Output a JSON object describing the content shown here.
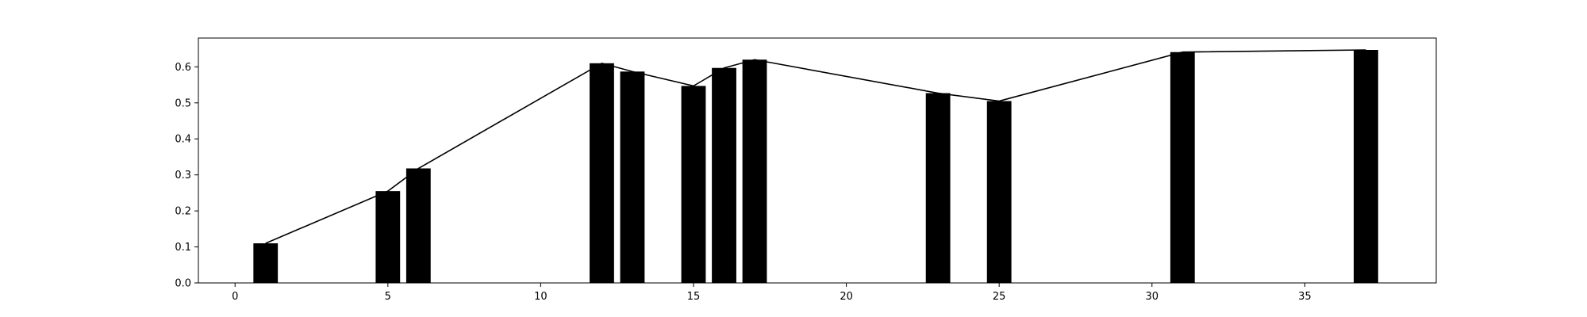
{
  "chart_data": {
    "type": "bar",
    "title": "",
    "xlabel": "",
    "ylabel": "",
    "xlim": [
      -1.2,
      39.3
    ],
    "ylim": [
      0,
      0.68
    ],
    "grid": false,
    "legend": "none",
    "bar_width": 0.8,
    "x_ticks": [
      0,
      5,
      10,
      15,
      20,
      25,
      30,
      35
    ],
    "y_ticks": [
      0.0,
      0.1,
      0.2,
      0.3,
      0.4,
      0.5,
      0.6
    ],
    "x_tick_labels": [
      "0",
      "5",
      "10",
      "15",
      "20",
      "25",
      "30",
      "35"
    ],
    "y_tick_labels": [
      "0.0",
      "0.1",
      "0.2",
      "0.3",
      "0.4",
      "0.5",
      "0.6"
    ],
    "x": [
      1,
      5,
      6,
      12,
      13,
      15,
      16,
      17,
      23,
      25,
      31,
      37
    ],
    "values": [
      0.11,
      0.255,
      0.318,
      0.61,
      0.587,
      0.547,
      0.597,
      0.62,
      0.527,
      0.505,
      0.641,
      0.647
    ],
    "line": {
      "x": [
        1,
        5,
        6,
        12,
        13,
        15,
        16,
        17,
        23,
        25,
        31,
        37
      ],
      "values": [
        0.11,
        0.255,
        0.318,
        0.61,
        0.587,
        0.547,
        0.597,
        0.62,
        0.527,
        0.505,
        0.641,
        0.647
      ]
    },
    "colors": {
      "bars": "#000000",
      "line": "#000000",
      "axes": "#000000"
    }
  }
}
